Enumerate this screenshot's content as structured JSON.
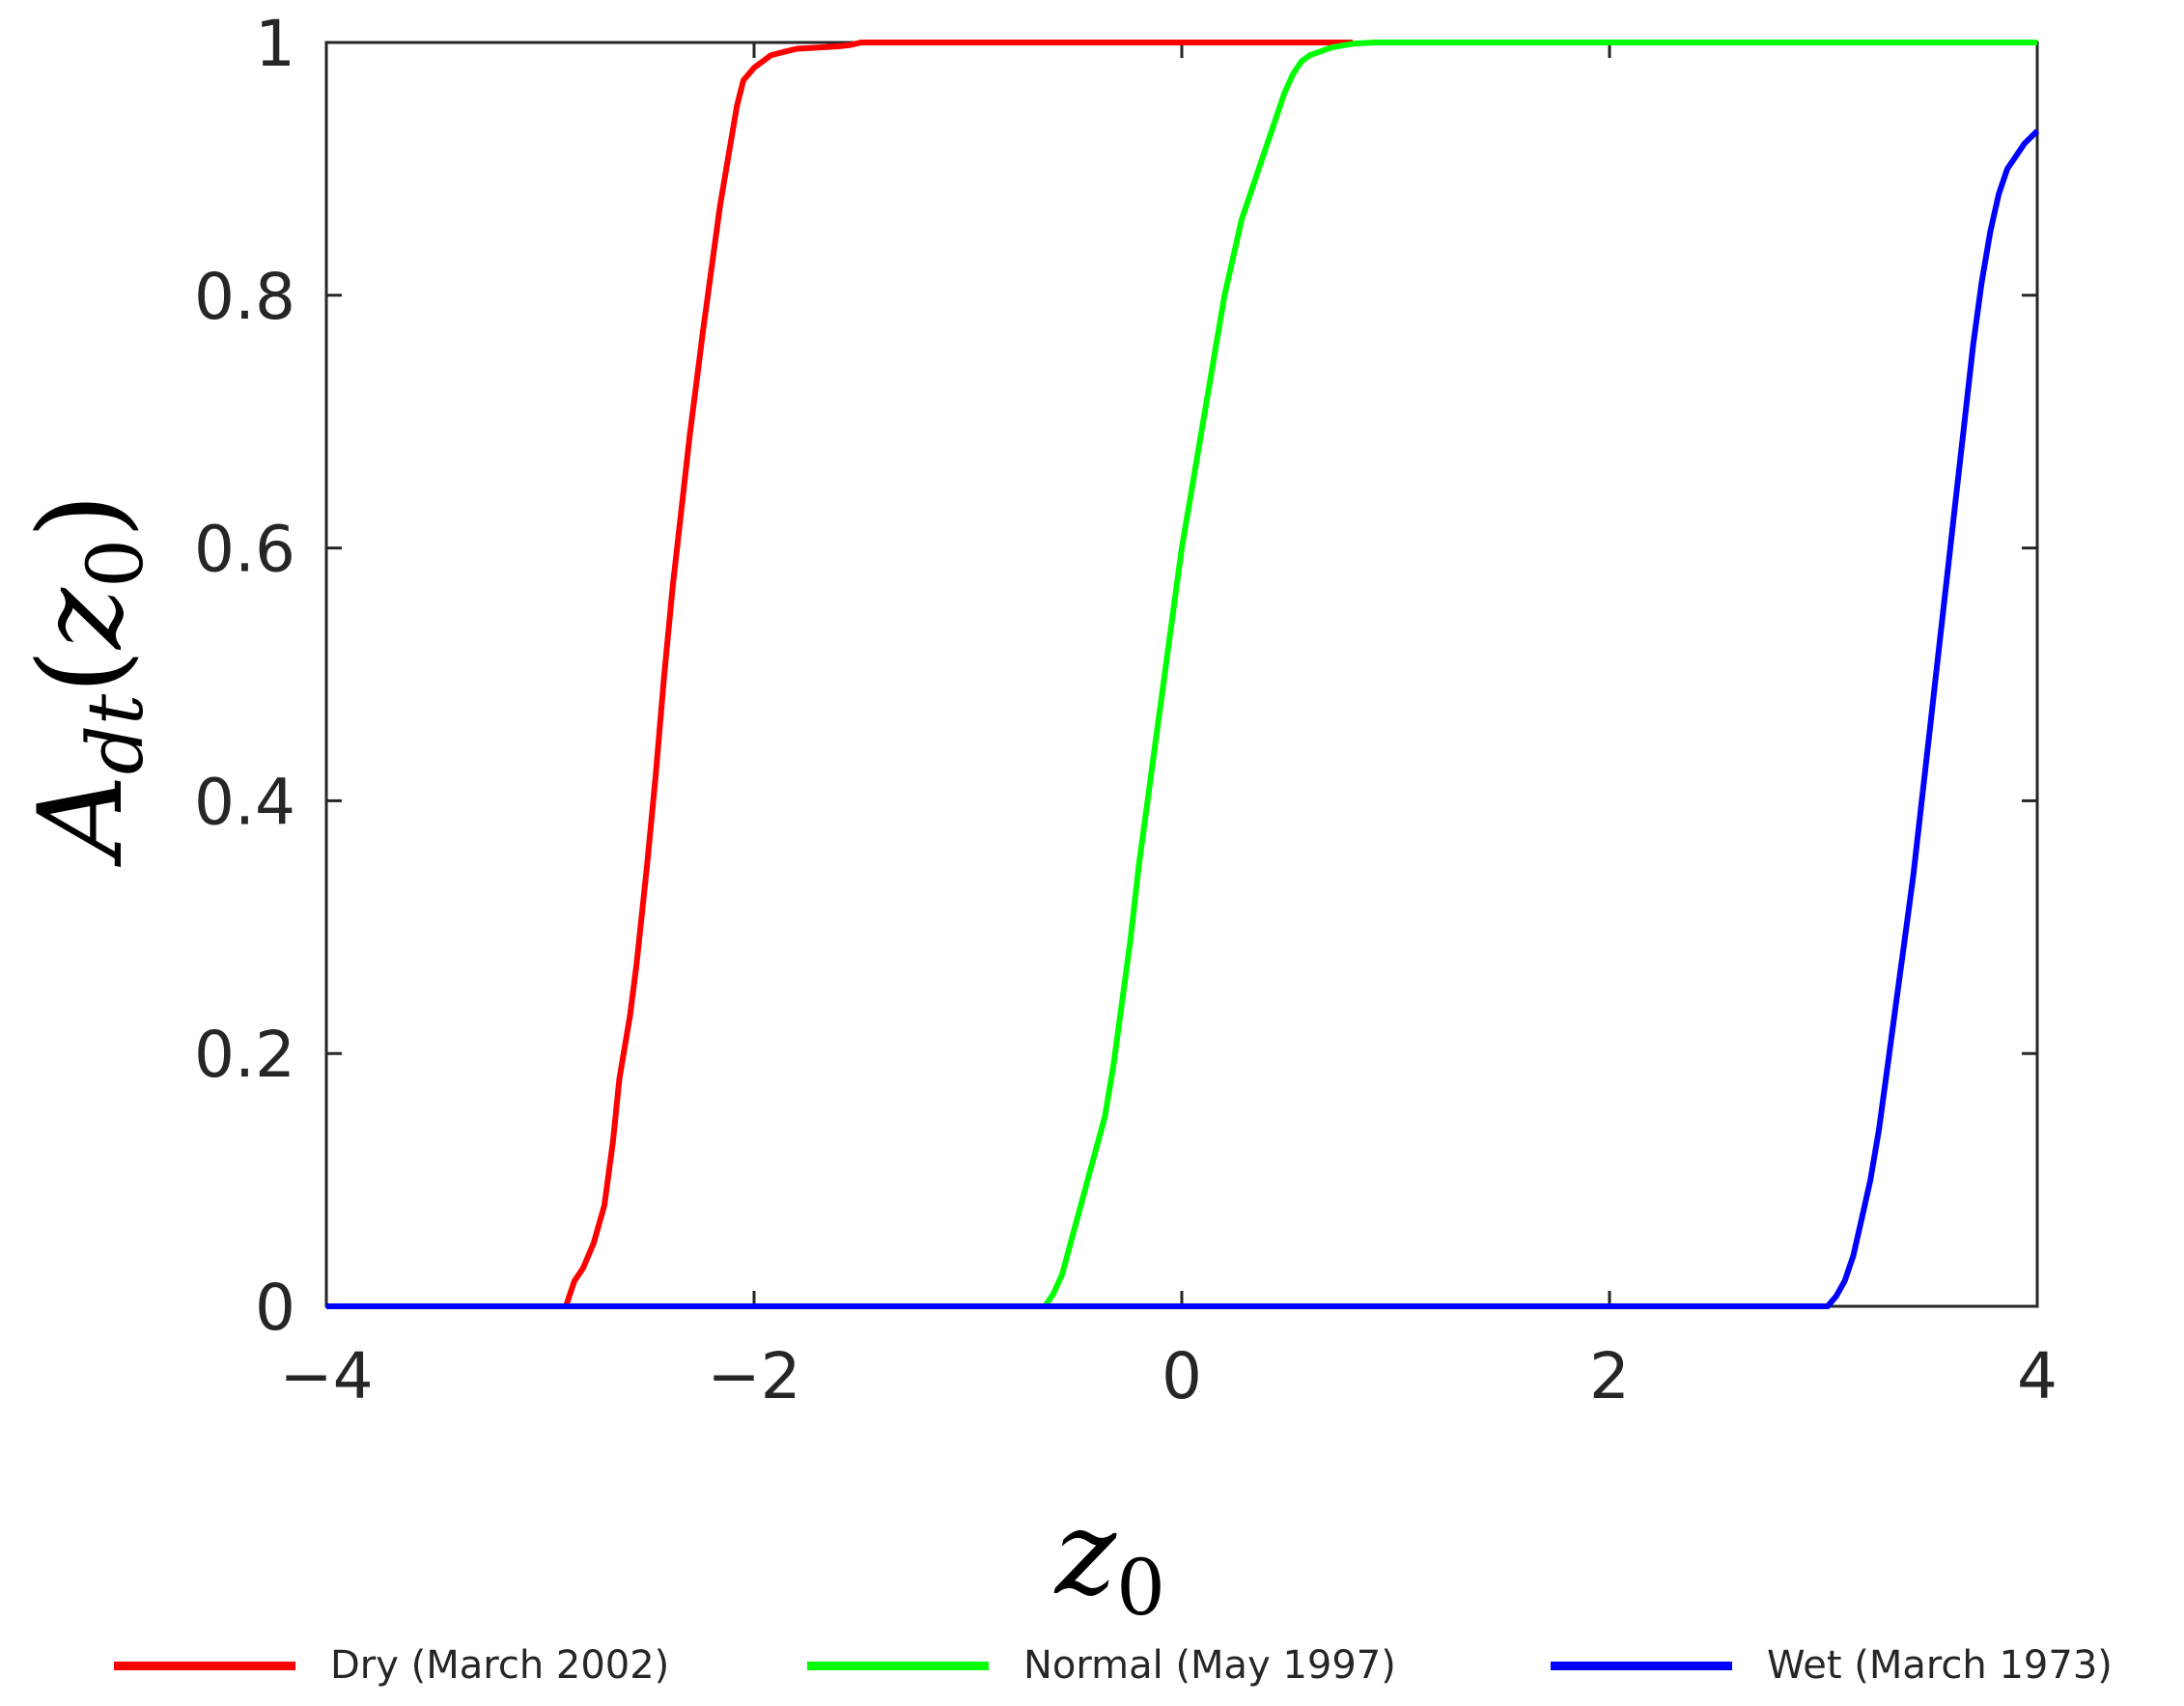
{
  "chart_data": {
    "type": "line",
    "title": "",
    "xlabel_main": "z",
    "xlabel_sub": "0",
    "ylabel_main": "A",
    "ylabel_sub": "dt",
    "ylabel_arg_open": "(",
    "ylabel_arg_main": "z",
    "ylabel_arg_sub": "0",
    "ylabel_arg_close": ")",
    "xlim": [
      -4,
      4
    ],
    "ylim": [
      0,
      1
    ],
    "xticks": [
      -4,
      -2,
      0,
      2,
      4
    ],
    "xtick_labels": [
      "-4",
      "-2",
      "0",
      "2",
      "4"
    ],
    "yticks": [
      0,
      0.2,
      0.4,
      0.6,
      0.8,
      1
    ],
    "ytick_labels": [
      "0",
      "0.2",
      "0.4",
      "0.6",
      "0.8",
      "1"
    ],
    "grid": false,
    "legend_placement": "bottom",
    "series": [
      {
        "name": "Dry (March 2002)",
        "color": "#ff0000",
        "x": [
          -4.0,
          -2.88,
          -2.84,
          -2.8,
          -2.75,
          -2.7,
          -2.66,
          -2.63,
          -2.6,
          -2.58,
          -2.55,
          -2.5,
          -2.46,
          -2.42,
          -2.38,
          -2.34,
          -2.3,
          -2.27,
          -2.24,
          -2.2,
          -2.16,
          -2.12,
          -2.08,
          -2.05,
          -2.0,
          -1.96,
          -1.92,
          -1.85,
          -1.8,
          -1.7,
          -1.6,
          -1.55,
          -1.5,
          -1.2,
          -1.0,
          0.8
        ],
        "y": [
          0.0,
          0.0,
          0.02,
          0.03,
          0.05,
          0.08,
          0.13,
          0.18,
          0.21,
          0.23,
          0.27,
          0.35,
          0.42,
          0.5,
          0.57,
          0.63,
          0.69,
          0.73,
          0.77,
          0.82,
          0.87,
          0.91,
          0.95,
          0.97,
          0.98,
          0.985,
          0.99,
          0.993,
          0.995,
          0.996,
          0.997,
          0.998,
          1.0,
          1.0,
          1.0,
          1.0
        ]
      },
      {
        "name": "Normal (May 1997)",
        "color": "#00ff00",
        "x": [
          -4.0,
          -0.64,
          -0.6,
          -0.56,
          -0.52,
          -0.48,
          -0.44,
          -0.4,
          -0.36,
          -0.32,
          -0.28,
          -0.24,
          -0.2,
          -0.16,
          -0.12,
          -0.08,
          -0.04,
          0.0,
          0.04,
          0.08,
          0.12,
          0.16,
          0.2,
          0.24,
          0.28,
          0.32,
          0.36,
          0.4,
          0.44,
          0.48,
          0.52,
          0.56,
          0.6,
          0.65,
          0.7,
          0.8,
          0.9,
          4.0
        ],
        "y": [
          0.0,
          0.0,
          0.01,
          0.025,
          0.05,
          0.075,
          0.1,
          0.125,
          0.15,
          0.19,
          0.24,
          0.29,
          0.35,
          0.4,
          0.45,
          0.5,
          0.55,
          0.6,
          0.64,
          0.68,
          0.72,
          0.76,
          0.8,
          0.83,
          0.86,
          0.88,
          0.9,
          0.92,
          0.94,
          0.96,
          0.975,
          0.985,
          0.99,
          0.993,
          0.996,
          0.999,
          1.0,
          1.0
        ]
      },
      {
        "name": "Wet (March 1973)",
        "color": "#0000ff",
        "x": [
          -4.0,
          3.02,
          3.06,
          3.1,
          3.14,
          3.18,
          3.22,
          3.26,
          3.3,
          3.34,
          3.38,
          3.42,
          3.46,
          3.5,
          3.54,
          3.58,
          3.62,
          3.66,
          3.7,
          3.74,
          3.78,
          3.82,
          3.86,
          3.9,
          3.94,
          4.0
        ],
        "y": [
          0.0,
          0.0,
          0.008,
          0.02,
          0.04,
          0.07,
          0.1,
          0.14,
          0.19,
          0.24,
          0.29,
          0.34,
          0.4,
          0.46,
          0.52,
          0.58,
          0.64,
          0.7,
          0.76,
          0.81,
          0.85,
          0.88,
          0.9,
          0.91,
          0.92,
          0.93
        ]
      }
    ]
  }
}
